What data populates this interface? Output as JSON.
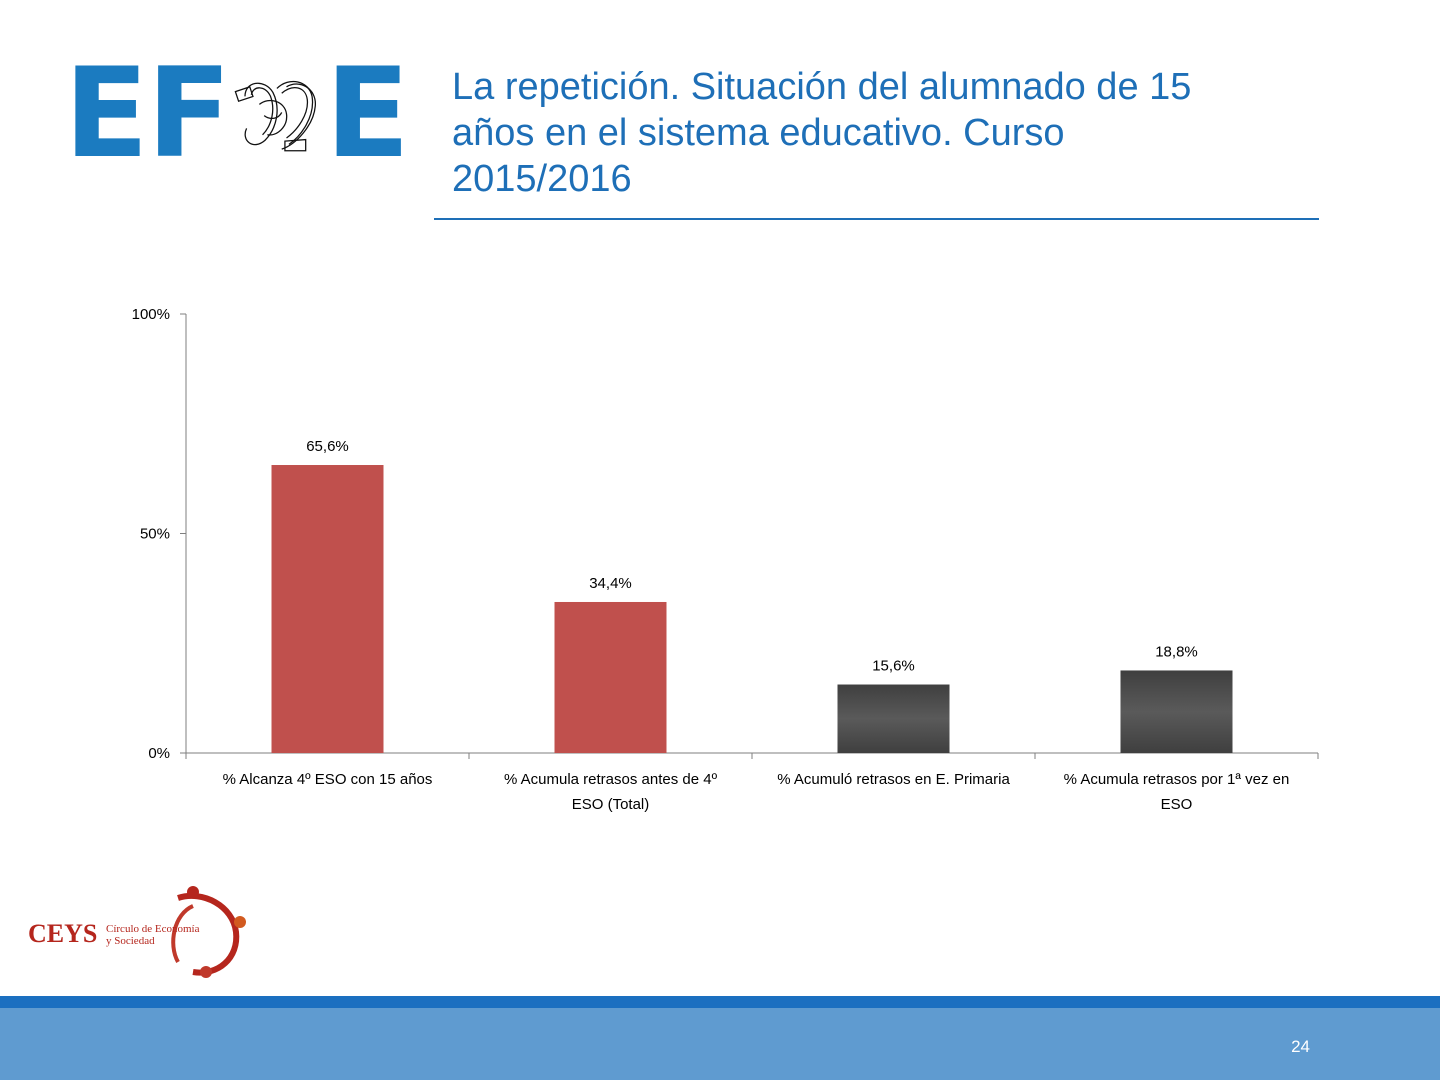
{
  "header": {
    "logo_letters": {
      "left": "EF",
      "right": "E"
    },
    "title": "La repetición. Situación del alumnado de 15 años en el sistema educativo. Curso 2015/2016",
    "title_lines": [
      "La repetición. Situación del alumnado de 15",
      "años en el sistema educativo. Curso",
      "2015/2016"
    ]
  },
  "colors": {
    "brand_blue": "#1e6fb7",
    "bar_red": "#c0504d",
    "bar_dark": "#4a4a4a",
    "footer_band": "#5f9bd0",
    "footer_line": "#1b6fc0"
  },
  "chart_data": {
    "type": "bar",
    "title": "",
    "xlabel": "",
    "ylabel": "",
    "categories": [
      [
        "% Alcanza 4º ESO con 15 años"
      ],
      [
        "% Acumula retrasos antes de 4º",
        "ESO (Total)"
      ],
      [
        "% Acumuló retrasos en E. Primaria"
      ],
      [
        "% Acumula retrasos por 1ª vez en",
        "ESO"
      ]
    ],
    "values": [
      65.6,
      34.4,
      15.6,
      18.8
    ],
    "data_labels": [
      "65,6%",
      "34,4%",
      "15,6%",
      "18,8%"
    ],
    "bar_colors": [
      "#c0504d",
      "#c0504d",
      "#4a4a4a",
      "#4a4a4a"
    ],
    "ylim": [
      0,
      100
    ],
    "yticks": [
      0,
      50,
      100
    ],
    "ytick_labels": [
      "0%",
      "50%",
      "100%"
    ],
    "grid": false,
    "legend": "none"
  },
  "footer": {
    "ceys_name": "CEYS",
    "ceys_subtitle": [
      "Círculo de Economía",
      "y Sociedad"
    ],
    "page_number": "24"
  }
}
